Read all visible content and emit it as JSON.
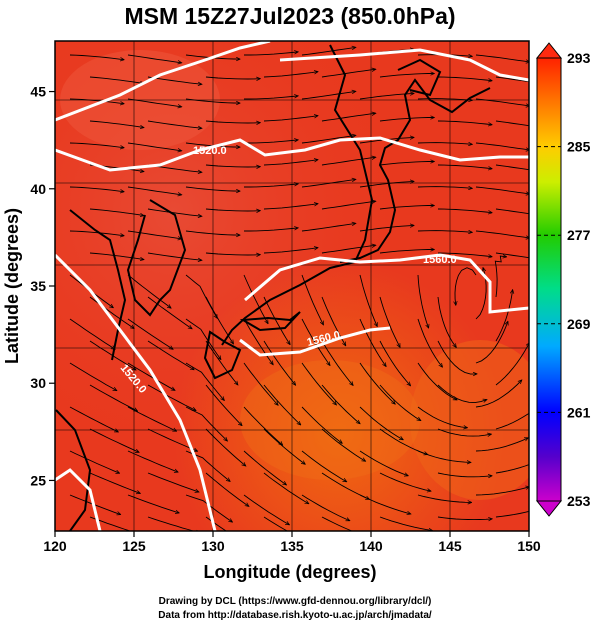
{
  "title": "MSM 15Z27Jul2023 (850.0hPa)",
  "x_axis": {
    "label": "Longitude (degrees)",
    "range": [
      120,
      150
    ],
    "ticks": [
      "120",
      "125",
      "130",
      "135",
      "140",
      "145",
      "150"
    ]
  },
  "y_axis": {
    "label": "Latitude  (degrees)",
    "range": [
      22.4,
      47.6
    ],
    "ticks": [
      "25",
      "30",
      "35",
      "40",
      "45"
    ]
  },
  "colorbar": {
    "range": [
      253,
      293
    ],
    "ticks": [
      "293",
      "285",
      "277",
      "269",
      "261",
      "253"
    ],
    "extend": "both"
  },
  "contours": [
    {
      "label": "1520.0"
    },
    {
      "label": "1560.0"
    },
    {
      "label": "1560.0"
    },
    {
      "label": "1520.0"
    }
  ],
  "credits": {
    "line1": "Drawing by DCL (https://www.gfd-dennou.org/library/dcl/)",
    "line2": "Data from http://database.rish.kyoto-u.ac.jp/arch/jmadata/"
  }
}
